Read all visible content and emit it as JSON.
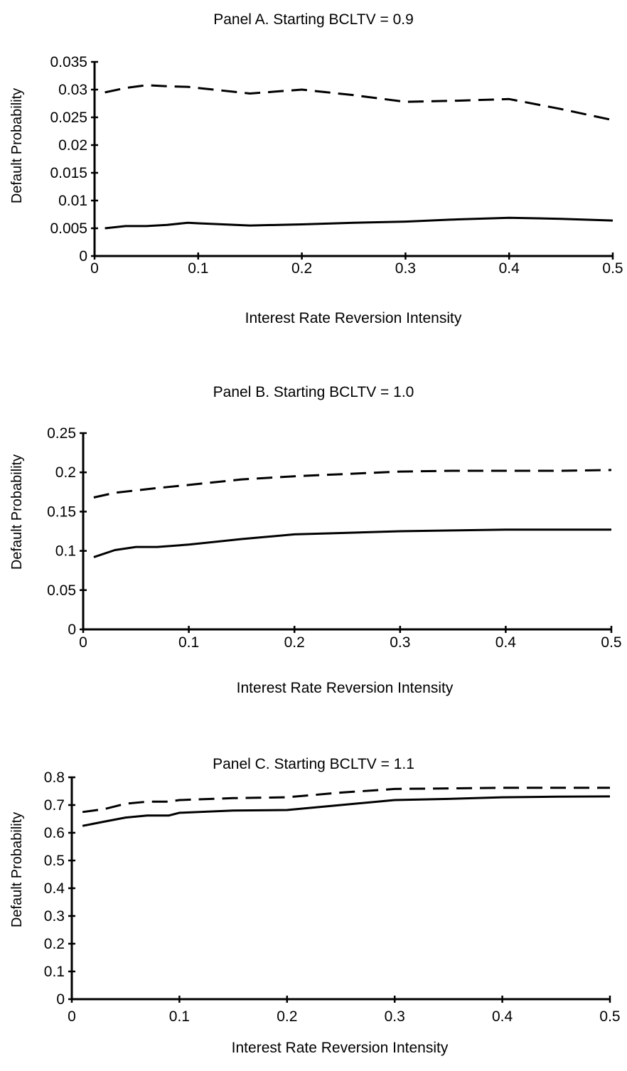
{
  "chart_data": [
    {
      "type": "line",
      "title": "Panel A.  Starting BCLTV = 0.9",
      "xlabel": "Interest Rate Reversion Intensity",
      "ylabel": "Default Probability",
      "xlim": [
        0,
        0.5
      ],
      "ylim": [
        0,
        0.035
      ],
      "xticks": [
        "0",
        "0.1",
        "0.2",
        "0.3",
        "0.4",
        "0.5"
      ],
      "yticks": [
        "0",
        "0.005",
        "0.01",
        "0.015",
        "0.02",
        "0.025",
        "0.03",
        "0.035"
      ],
      "grid": false,
      "series": [
        {
          "style": "dashed",
          "x": [
            0.01,
            0.03,
            0.05,
            0.07,
            0.09,
            0.1,
            0.15,
            0.2,
            0.25,
            0.3,
            0.35,
            0.4,
            0.45,
            0.5
          ],
          "y": [
            0.0295,
            0.0303,
            0.0308,
            0.0306,
            0.0305,
            0.0303,
            0.0293,
            0.03,
            0.029,
            0.0278,
            0.028,
            0.0283,
            0.0265,
            0.0245
          ]
        },
        {
          "style": "solid",
          "x": [
            0.01,
            0.03,
            0.05,
            0.07,
            0.09,
            0.1,
            0.15,
            0.2,
            0.25,
            0.3,
            0.35,
            0.4,
            0.45,
            0.5
          ],
          "y": [
            0.005,
            0.0054,
            0.0054,
            0.0056,
            0.006,
            0.0059,
            0.0055,
            0.0057,
            0.006,
            0.0062,
            0.0066,
            0.0069,
            0.0067,
            0.0064
          ]
        }
      ]
    },
    {
      "type": "line",
      "title": "Panel B.  Starting BCLTV = 1.0",
      "xlabel": "Interest Rate Reversion Intensity",
      "ylabel": "Default Probability",
      "xlim": [
        0,
        0.5
      ],
      "ylim": [
        0,
        0.25
      ],
      "xticks": [
        "0",
        "0.1",
        "0.2",
        "0.3",
        "0.4",
        "0.5"
      ],
      "yticks": [
        "0",
        "0.05",
        "0.1",
        "0.15",
        "0.2",
        "0.25"
      ],
      "grid": false,
      "series": [
        {
          "style": "dashed",
          "x": [
            0.01,
            0.03,
            0.05,
            0.07,
            0.1,
            0.15,
            0.2,
            0.25,
            0.3,
            0.35,
            0.4,
            0.45,
            0.5
          ],
          "y": [
            0.168,
            0.174,
            0.177,
            0.18,
            0.184,
            0.191,
            0.195,
            0.198,
            0.201,
            0.202,
            0.202,
            0.202,
            0.203
          ]
        },
        {
          "style": "solid",
          "x": [
            0.01,
            0.03,
            0.05,
            0.07,
            0.1,
            0.15,
            0.2,
            0.25,
            0.3,
            0.35,
            0.4,
            0.45,
            0.5
          ],
          "y": [
            0.092,
            0.101,
            0.105,
            0.105,
            0.108,
            0.115,
            0.121,
            0.123,
            0.125,
            0.126,
            0.127,
            0.127,
            0.127
          ]
        }
      ]
    },
    {
      "type": "line",
      "title": "Panel C.  Starting BCLTV = 1.1",
      "xlabel": "Interest Rate Reversion Intensity",
      "ylabel": "Default Probability",
      "xlim": [
        0,
        0.5
      ],
      "ylim": [
        0,
        0.8
      ],
      "xticks": [
        "0",
        "0.1",
        "0.2",
        "0.3",
        "0.4",
        "0.5"
      ],
      "yticks": [
        "0",
        "0.1",
        "0.2",
        "0.3",
        "0.4",
        "0.5",
        "0.6",
        "0.7",
        "0.8"
      ],
      "grid": false,
      "series": [
        {
          "style": "dashed",
          "x": [
            0.01,
            0.03,
            0.05,
            0.07,
            0.09,
            0.1,
            0.15,
            0.2,
            0.25,
            0.3,
            0.35,
            0.4,
            0.45,
            0.5
          ],
          "y": [
            0.675,
            0.685,
            0.705,
            0.712,
            0.712,
            0.718,
            0.725,
            0.728,
            0.745,
            0.758,
            0.76,
            0.762,
            0.762,
            0.762
          ]
        },
        {
          "style": "solid",
          "x": [
            0.01,
            0.03,
            0.05,
            0.07,
            0.09,
            0.1,
            0.15,
            0.2,
            0.25,
            0.3,
            0.35,
            0.4,
            0.45,
            0.5
          ],
          "y": [
            0.625,
            0.64,
            0.655,
            0.662,
            0.662,
            0.672,
            0.68,
            0.682,
            0.7,
            0.718,
            0.722,
            0.728,
            0.73,
            0.731
          ]
        }
      ]
    }
  ]
}
